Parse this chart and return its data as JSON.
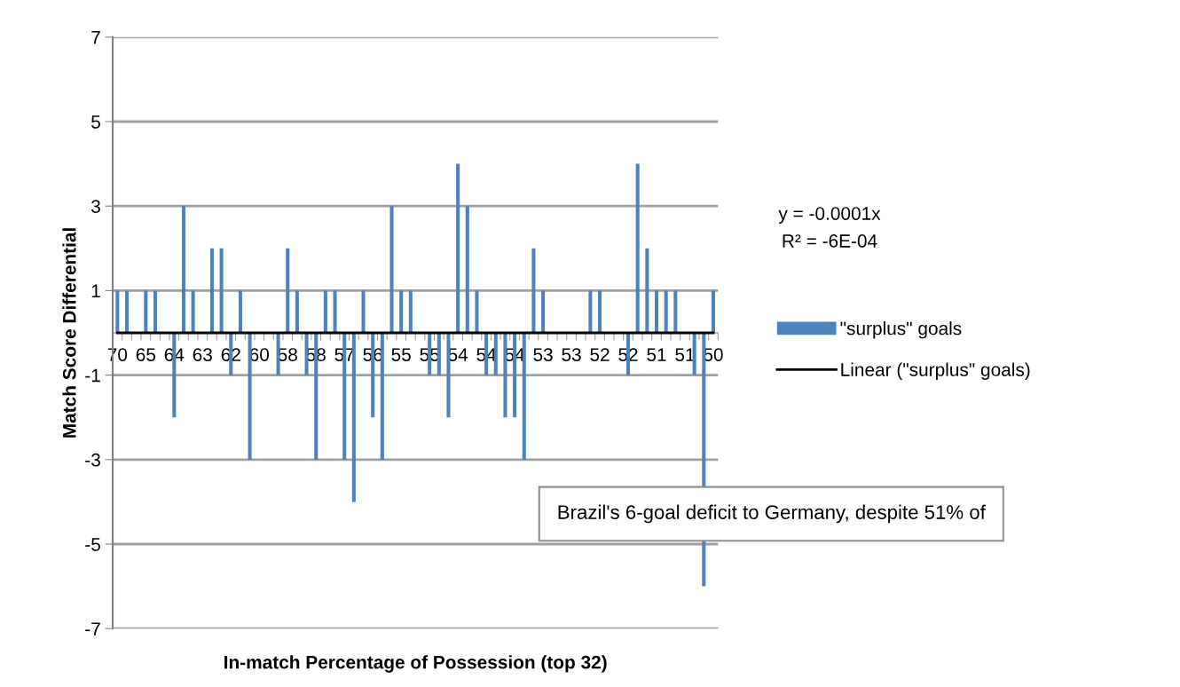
{
  "chart_data": {
    "type": "bar",
    "xlabel": "In-match Percentage of Possession (top 32)",
    "ylabel": "Match Score Differential",
    "categories": [
      "70",
      null,
      null,
      "65",
      null,
      null,
      "64",
      null,
      null,
      "63",
      null,
      null,
      "62",
      null,
      null,
      "60",
      null,
      null,
      "58",
      null,
      null,
      "58",
      null,
      null,
      "57",
      null,
      null,
      "56",
      null,
      null,
      "55",
      null,
      null,
      "55",
      null,
      null,
      "54",
      null,
      null,
      "54",
      null,
      null,
      "54",
      null,
      null,
      "53",
      null,
      null,
      "53",
      null,
      null,
      "52",
      null,
      null,
      "52",
      null,
      null,
      "51",
      null,
      null,
      "51",
      null,
      null,
      "50"
    ],
    "series": [
      {
        "name": "\"surplus\" goals",
        "color": "#4f81bd",
        "values": [
          1,
          1,
          0,
          1,
          1,
          0,
          -2,
          3,
          1,
          0,
          2,
          2,
          -1,
          1,
          -3,
          0,
          0,
          -1,
          2,
          1,
          -1,
          -3,
          1,
          1,
          -3,
          -4,
          1,
          -2,
          -3,
          3,
          1,
          1,
          0,
          -1,
          -1,
          -2,
          4,
          3,
          1,
          -1,
          -1,
          -2,
          -2,
          -3,
          2,
          1,
          0,
          0,
          0,
          0,
          1,
          1,
          0,
          0,
          -1,
          4,
          2,
          1,
          1,
          1,
          0,
          -1,
          -6,
          1
        ]
      },
      {
        "name": "Linear (\"surplus\" goals)",
        "type": "line",
        "color": "#000000",
        "values": [
          0,
          0,
          0,
          0,
          0,
          0,
          0,
          0,
          0,
          0,
          0,
          0,
          0,
          0,
          0,
          0,
          0,
          0,
          0,
          0,
          0,
          0,
          0,
          0,
          0,
          0,
          0,
          0,
          0,
          0,
          0,
          0,
          0,
          0,
          0,
          0,
          0,
          0,
          0,
          0,
          0,
          0,
          0,
          0,
          0,
          0,
          0,
          0,
          0,
          0,
          0,
          0,
          0,
          0,
          0,
          0,
          0,
          0,
          0,
          0,
          0,
          0,
          0,
          0
        ]
      }
    ],
    "ylim": [
      -7,
      7
    ],
    "yticks": [
      -7,
      -5,
      -3,
      -1,
      1,
      3,
      5,
      7
    ],
    "grid": "y",
    "legend": "right",
    "annotations": [
      "y = -0.0001x",
      "R² = -6E-04",
      "Brazil's 6-goal deficit to Germany, despite 51% of"
    ]
  }
}
